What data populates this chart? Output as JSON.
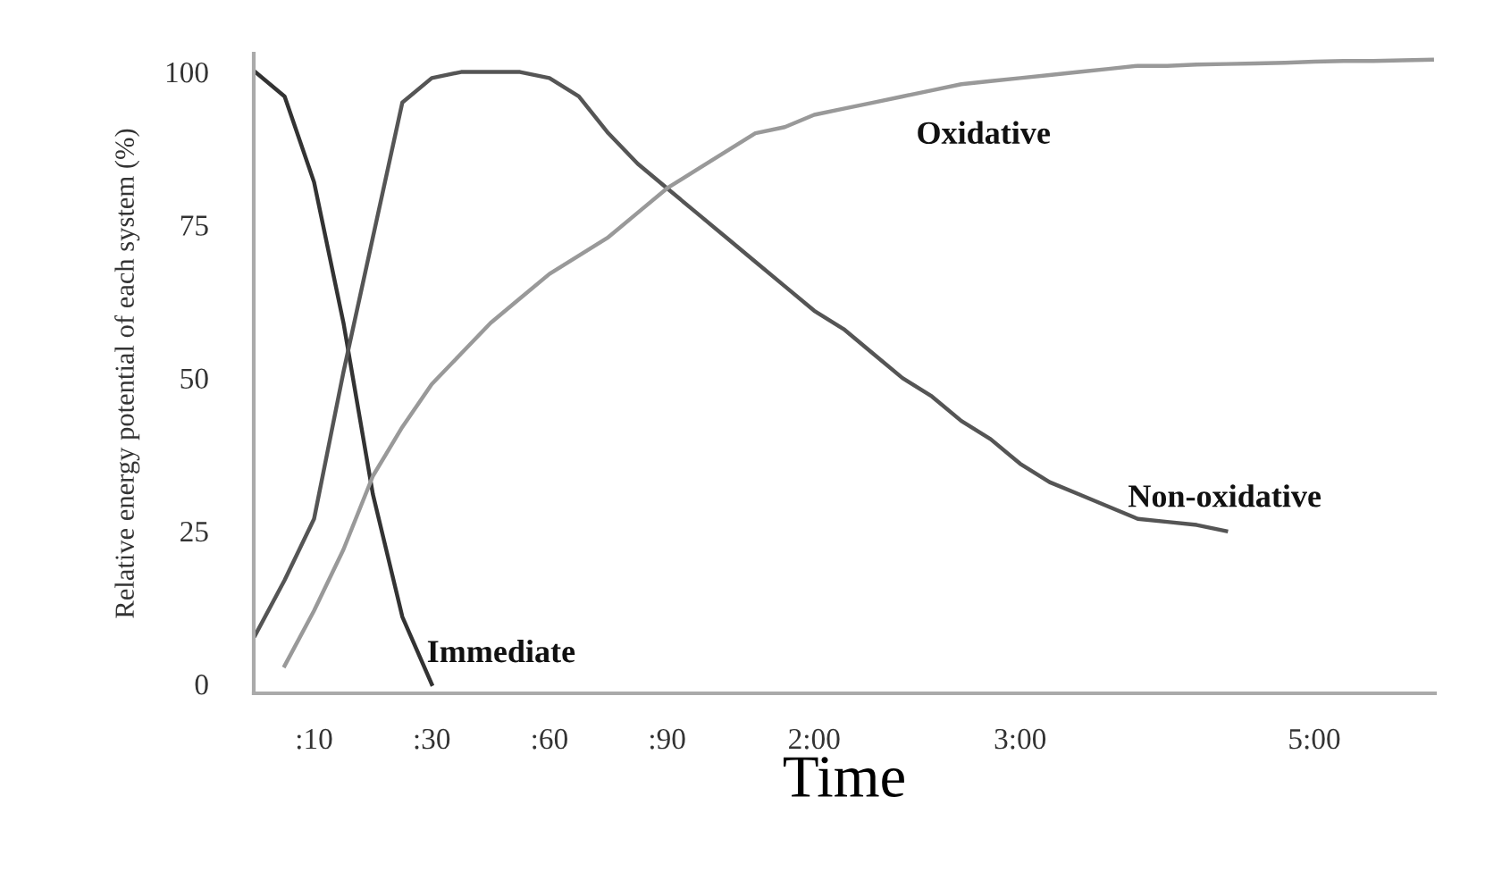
{
  "chart_data": {
    "type": "line",
    "xlabel": "Time",
    "ylabel": "Relative energy potential of each system (%)",
    "categories": [
      null,
      null,
      ":10",
      null,
      null,
      null,
      ":30",
      null,
      null,
      null,
      ":60",
      null,
      null,
      null,
      ":90",
      null,
      null,
      null,
      null,
      "2:00",
      null,
      null,
      null,
      null,
      null,
      null,
      "3:00",
      null,
      null,
      null,
      null,
      null,
      null,
      null,
      null,
      null,
      "5:00",
      null,
      null,
      null,
      null
    ],
    "ylim": [
      -1.5,
      103
    ],
    "yticks": [
      0,
      25,
      50,
      75,
      100
    ],
    "grid": false,
    "legend": false,
    "marker": "none",
    "line_style": "solid",
    "series": [
      {
        "name": "Immediate",
        "color": "#333333",
        "values": [
          100,
          96,
          82,
          59,
          31,
          11,
          0,
          null,
          null,
          null,
          null,
          null,
          null,
          null,
          null,
          null,
          null,
          null,
          null,
          null,
          null,
          null,
          null,
          null,
          null,
          null,
          null,
          null,
          null,
          null,
          null,
          null,
          null,
          null,
          null,
          null,
          null,
          null,
          null,
          null,
          null
        ]
      },
      {
        "name": "Non-oxidative",
        "color": "#555555",
        "values": [
          8,
          17,
          27,
          51,
          73,
          95,
          99,
          100,
          100,
          100,
          99,
          96,
          90,
          85,
          81,
          77,
          73,
          69,
          65,
          61,
          58,
          54,
          50,
          47,
          43,
          40,
          36,
          33,
          31,
          29,
          27,
          26.5,
          26,
          25,
          null,
          null,
          null,
          null,
          null,
          null,
          null
        ]
      },
      {
        "name": "Oxidative",
        "color": "#999999",
        "values": [
          null,
          3,
          12,
          22,
          34,
          42,
          49,
          54,
          59,
          63,
          67,
          70,
          73,
          77,
          81,
          84,
          87,
          90,
          91,
          93,
          94,
          95,
          96,
          97,
          98,
          98.5,
          99,
          99.5,
          100,
          100.5,
          101,
          101,
          101.2,
          101.3,
          101.4,
          101.5,
          101.7,
          101.8,
          101.8,
          101.9,
          102
        ]
      }
    ]
  }
}
